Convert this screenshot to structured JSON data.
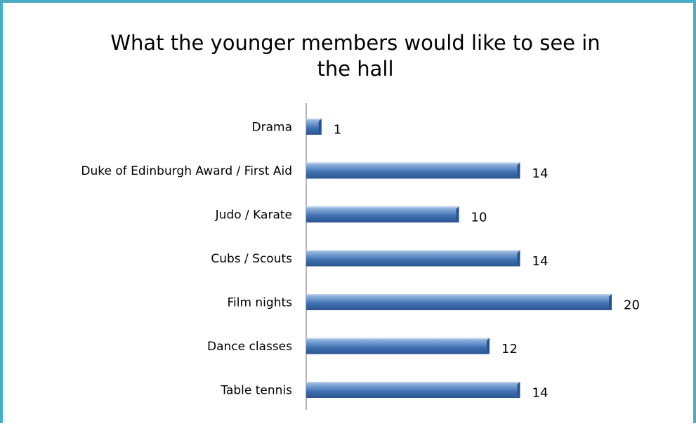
{
  "chart_data": {
    "type": "bar",
    "orientation": "horizontal",
    "title": "What the younger members would like to see in the hall",
    "title_lines": [
      "What the younger members would like to see in",
      "the hall"
    ],
    "categories": [
      "Drama",
      "Duke of Edinburgh Award / First Aid",
      "Judo / Karate",
      "Cubs / Scouts",
      "Film nights",
      "Dance classes",
      "Table tennis"
    ],
    "values": [
      1,
      14,
      10,
      14,
      20,
      12,
      14
    ],
    "data_labels": [
      "1",
      "14",
      "10",
      "14",
      "20",
      "12",
      "14"
    ],
    "xlabel": "",
    "ylabel": "",
    "xlim": [
      0,
      20
    ],
    "grid": false,
    "legend": "none",
    "bar_color": "#4F81BD",
    "frame_color": "#4BACC6"
  }
}
